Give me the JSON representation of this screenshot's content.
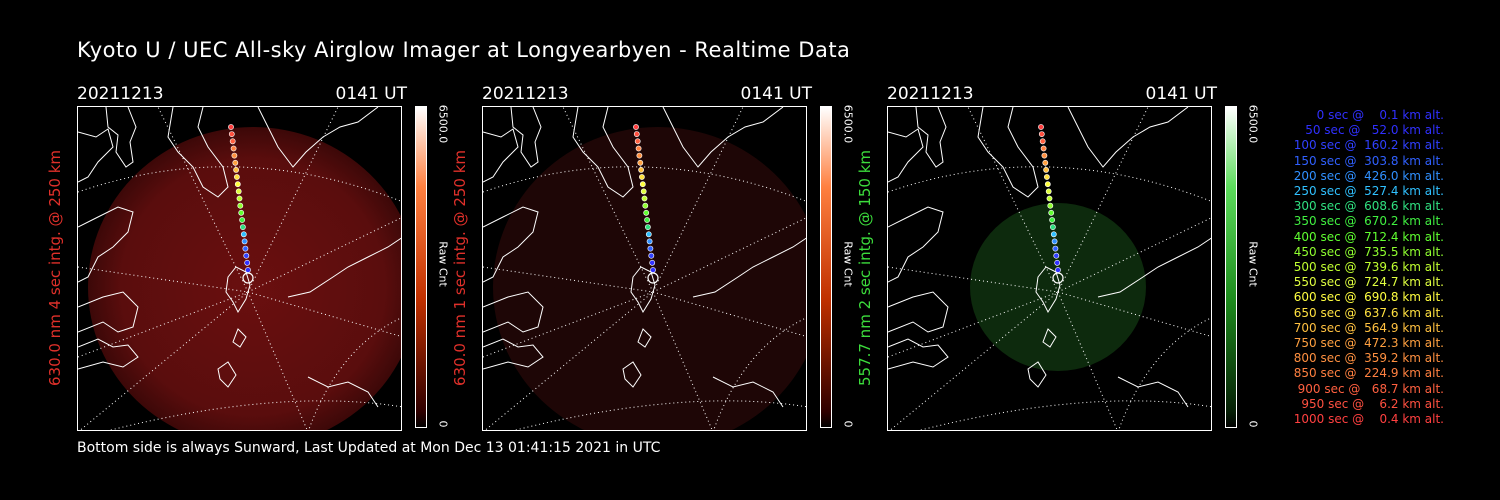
{
  "title": "Kyoto U / UEC All-sky Airglow Imager at Longyearbyen - Realtime Data",
  "footer": "Bottom side is always Sunward, Last Updated at Mon Dec 13 01:41:15 2021 in UTC",
  "colors": {
    "red": "#ff2a1a",
    "green": "#39e639"
  },
  "panels": [
    {
      "date": "20211213",
      "time": "0141  UT",
      "label": "630.0 nm  4 sec intg. @ 250 km",
      "label_color": "#e0302a",
      "cbar_max": "6500.0",
      "cbar_unit": "Raw Cnt",
      "cbar_min": "0",
      "cbar_color": "#c03000"
    },
    {
      "date": "20211213",
      "time": "0141  UT",
      "label": "630.0 nm  1 sec intg. @ 250 km",
      "label_color": "#e0302a",
      "cbar_max": "6500.0",
      "cbar_unit": "Raw Cnt",
      "cbar_min": "0",
      "cbar_color": "#c03000"
    },
    {
      "date": "20211213",
      "time": "0141  UT",
      "label": "557.7 nm  2 sec intg. @ 150 km",
      "label_color": "#3cdc3c",
      "cbar_max": "6500.0",
      "cbar_unit": "Raw Cnt",
      "cbar_min": "0",
      "cbar_color": "#1e8c1e"
    }
  ],
  "legend": [
    {
      "text": "   0 sec @    0.1 km alt.",
      "color": "#3030ff"
    },
    {
      "text": "  50 sec @   52.0 km alt.",
      "color": "#3030ff"
    },
    {
      "text": " 100 sec @  160.2 km alt.",
      "color": "#3040ff"
    },
    {
      "text": " 150 sec @  303.8 km alt.",
      "color": "#3060ff"
    },
    {
      "text": " 200 sec @  426.0 km alt.",
      "color": "#3090ff"
    },
    {
      "text": " 250 sec @  527.4 km alt.",
      "color": "#30c0ff"
    },
    {
      "text": " 300 sec @  608.6 km alt.",
      "color": "#30e080"
    },
    {
      "text": " 350 sec @  670.2 km alt.",
      "color": "#40f040"
    },
    {
      "text": " 400 sec @  712.4 km alt.",
      "color": "#60ff30"
    },
    {
      "text": " 450 sec @  735.5 km alt.",
      "color": "#90ff30"
    },
    {
      "text": " 500 sec @  739.6 km alt.",
      "color": "#c0ff30"
    },
    {
      "text": " 550 sec @  724.7 km alt.",
      "color": "#e0ff40"
    },
    {
      "text": " 600 sec @  690.8 km alt.",
      "color": "#ffff40"
    },
    {
      "text": " 650 sec @  637.6 km alt.",
      "color": "#ffe040"
    },
    {
      "text": " 700 sec @  564.9 km alt.",
      "color": "#ffc040"
    },
    {
      "text": " 750 sec @  472.3 km alt.",
      "color": "#ffa040"
    },
    {
      "text": " 800 sec @  359.2 km alt.",
      "color": "#ff9040"
    },
    {
      "text": " 850 sec @  224.9 km alt.",
      "color": "#ff8040"
    },
    {
      "text": " 900 sec @   68.7 km alt.",
      "color": "#ff6040"
    },
    {
      "text": " 950 sec @    6.2 km alt.",
      "color": "#ff5040"
    },
    {
      "text": "1000 sec @    0.4 km alt.",
      "color": "#ff4040"
    }
  ]
}
